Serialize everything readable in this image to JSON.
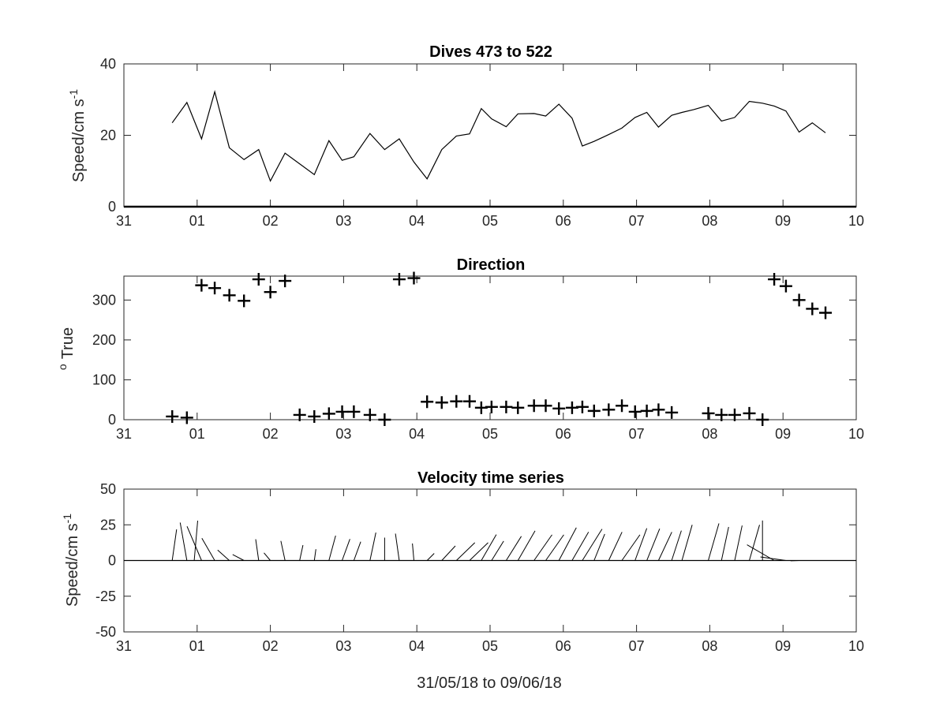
{
  "chart_data": [
    {
      "type": "line",
      "title": "Dives 473 to 522",
      "ylabel": "Speed/cm s",
      "ylabel_superscript": "-1",
      "xlabel": "",
      "xlim": [
        0,
        10
      ],
      "ylim": [
        0,
        40
      ],
      "xticks": [
        0,
        1,
        2,
        3,
        4,
        5,
        6,
        7,
        8,
        9,
        10
      ],
      "xtick_labels": [
        "31",
        "01",
        "02",
        "03",
        "04",
        "05",
        "06",
        "07",
        "08",
        "09",
        "10"
      ],
      "yticks": [
        0,
        20,
        40
      ],
      "ytick_labels": [
        "0",
        "20",
        "40"
      ],
      "grid": false,
      "series": [
        {
          "x": [
            0.66,
            0.86,
            1.06,
            1.24,
            1.44,
            1.64,
            1.84,
            2.0,
            2.2,
            2.6,
            2.8,
            2.98,
            3.14,
            3.36,
            3.56,
            3.76,
            3.96,
            4.14,
            4.34,
            4.54,
            4.72,
            4.88,
            5.02,
            5.22,
            5.38,
            5.6,
            5.76,
            5.94,
            6.12,
            6.26,
            6.42,
            6.62,
            6.8,
            6.98,
            7.14,
            7.3,
            7.48,
            7.62,
            7.78,
            7.98,
            8.16,
            8.34,
            8.54,
            8.72,
            8.88,
            9.04,
            9.22,
            9.4,
            9.58
          ],
          "y": [
            23.5,
            29.2,
            19.0,
            32.2,
            16.5,
            13.2,
            16.0,
            7.2,
            15.0,
            9.0,
            18.5,
            13.0,
            14.0,
            20.5,
            16.0,
            19.0,
            12.5,
            7.8,
            16.0,
            19.8,
            20.4,
            27.5,
            24.6,
            22.4,
            26.0,
            26.1,
            25.4,
            28.7,
            24.8,
            17.0,
            18.3,
            20.2,
            22.0,
            25.0,
            26.4,
            22.3,
            25.6,
            26.4,
            27.2,
            28.4,
            24.0,
            25.0,
            29.5,
            29.0,
            28.2,
            26.8,
            20.9,
            23.5,
            20.7
          ]
        }
      ]
    },
    {
      "type": "scatter",
      "title": "Direction",
      "ylabel": "True",
      "ylabel_prefix_superscript": "o",
      "xlabel": "",
      "xlim": [
        0,
        10
      ],
      "ylim": [
        0,
        360
      ],
      "xticks": [
        0,
        1,
        2,
        3,
        4,
        5,
        6,
        7,
        8,
        9,
        10
      ],
      "xtick_labels": [
        "31",
        "01",
        "02",
        "03",
        "04",
        "05",
        "06",
        "07",
        "08",
        "09",
        "10"
      ],
      "yticks": [
        0,
        100,
        200,
        300
      ],
      "ytick_labels": [
        "0",
        "100",
        "200",
        "300"
      ],
      "grid": false,
      "marker": "+",
      "series": [
        {
          "x": [
            0.66,
            0.86,
            1.06,
            1.24,
            1.44,
            1.64,
            1.84,
            2.0,
            2.2,
            2.4,
            2.6,
            2.8,
            2.98,
            3.14,
            3.36,
            3.56,
            3.76,
            3.96,
            4.14,
            4.34,
            4.54,
            4.72,
            4.88,
            5.02,
            5.22,
            5.38,
            5.6,
            5.76,
            5.94,
            6.12,
            6.26,
            6.42,
            6.62,
            6.8,
            6.98,
            7.14,
            7.3,
            7.48,
            7.98,
            8.16,
            8.34,
            8.54,
            8.72,
            8.88,
            9.04,
            9.22,
            9.4,
            9.58
          ],
          "y": [
            8,
            5,
            337,
            330,
            312,
            298,
            352,
            320,
            348,
            12,
            8,
            15,
            20,
            20,
            12,
            0,
            352,
            355,
            45,
            43,
            46,
            46,
            30,
            32,
            32,
            30,
            35,
            35,
            28,
            30,
            32,
            22,
            25,
            35,
            20,
            22,
            25,
            18,
            16,
            12,
            12,
            16,
            0,
            352,
            335,
            300,
            278,
            268
          ]
        }
      ]
    },
    {
      "type": "quiver",
      "title": "Velocity time series",
      "ylabel": "Speed/cm s",
      "ylabel_superscript": "-1",
      "xlabel": "31/05/18 to 09/06/18",
      "xlim": [
        0,
        10
      ],
      "ylim": [
        -50,
        50
      ],
      "xticks": [
        0,
        1,
        2,
        3,
        4,
        5,
        6,
        7,
        8,
        9,
        10
      ],
      "xtick_labels": [
        "31",
        "01",
        "02",
        "03",
        "04",
        "05",
        "06",
        "07",
        "08",
        "09",
        "10"
      ],
      "yticks": [
        -50,
        -25,
        0,
        25,
        50
      ],
      "ytick_labels": [
        "-50",
        "-25",
        "0",
        "25",
        "50"
      ],
      "grid": false,
      "series": [
        {
          "x": [
            0.66,
            0.86,
            0.96,
            1.06,
            1.24,
            1.44,
            1.64,
            1.84,
            2.0,
            2.2,
            2.4,
            2.6,
            2.8,
            2.98,
            3.14,
            3.36,
            3.56,
            3.76,
            3.96,
            4.14,
            4.34,
            4.54,
            4.72,
            4.88,
            5.02,
            5.22,
            5.38,
            5.6,
            5.76,
            5.94,
            6.12,
            6.26,
            6.42,
            6.62,
            6.8,
            6.98,
            7.14,
            7.3,
            7.48,
            7.62,
            7.98,
            8.16,
            8.34,
            8.54,
            8.72,
            8.88,
            9.04,
            9.22
          ],
          "speed": [
            22,
            27,
            28,
            26,
            18,
            11,
            9,
            15,
            7,
            14,
            11,
            8,
            18,
            16,
            14,
            20,
            16,
            19,
            12,
            7,
            14,
            18,
            18,
            21,
            16,
            20,
            24,
            22,
            22,
            26,
            23,
            26,
            20,
            22,
            22,
            24,
            24,
            22,
            22,
            26,
            27,
            24,
            25,
            26,
            28,
            22,
            18,
            6
          ],
          "direction": [
            8,
            350,
            5,
            337,
            330,
            312,
            298,
            352,
            320,
            348,
            12,
            8,
            15,
            20,
            20,
            12,
            0,
            352,
            355,
            45,
            43,
            46,
            46,
            30,
            32,
            32,
            30,
            35,
            35,
            28,
            30,
            32,
            22,
            25,
            35,
            20,
            22,
            25,
            18,
            16,
            16,
            12,
            12,
            16,
            0,
            300,
            278,
            268
          ]
        }
      ]
    }
  ]
}
